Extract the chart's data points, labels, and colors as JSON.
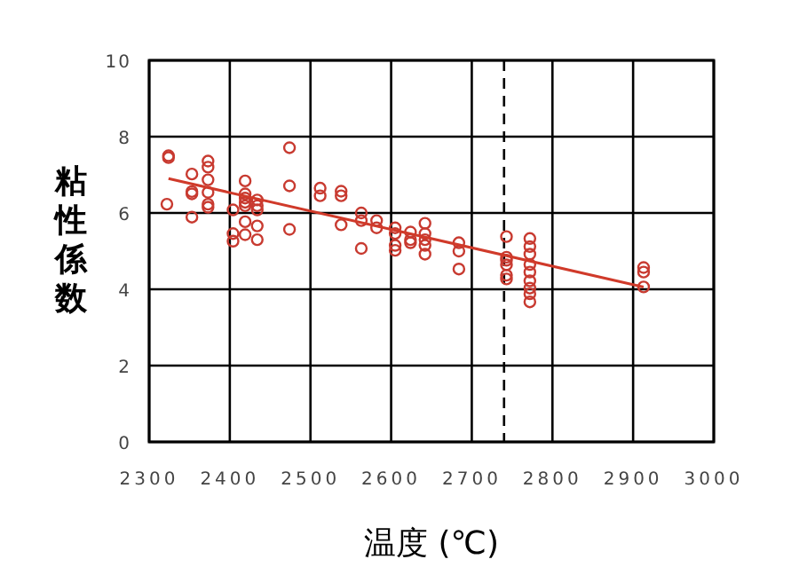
{
  "chart_data": {
    "type": "scatter",
    "xlabel": "温度 (℃)",
    "ylabel": "粘性係数",
    "xlim": [
      2300,
      3000
    ],
    "ylim": [
      0,
      10
    ],
    "xticks": [
      2300,
      2400,
      2500,
      2600,
      2700,
      2800,
      2900,
      3000
    ],
    "yticks": [
      0,
      2,
      4,
      6,
      8,
      10
    ],
    "grid": true,
    "marker": "circle",
    "ref_lines": [
      {
        "axis": "x",
        "value": 2740,
        "color": "#000000",
        "line_style": "dashed"
      }
    ],
    "series": [
      {
        "color": "#c83a30",
        "x": [
          2324,
          2324,
          2322,
          2353,
          2353,
          2353,
          2353,
          2373,
          2373,
          2373,
          2373,
          2373,
          2373,
          2419,
          2419,
          2419,
          2419,
          2419,
          2404,
          2404,
          2404,
          2419,
          2419,
          2434,
          2434,
          2434,
          2434,
          2434,
          2474,
          2474,
          2474,
          2512,
          2512,
          2538,
          2538,
          2538,
          2563,
          2563,
          2563,
          2582,
          2582,
          2605,
          2605,
          2605,
          2605,
          2624,
          2624,
          2624,
          2642,
          2642,
          2642,
          2642,
          2642,
          2684,
          2684,
          2684,
          2743,
          2743,
          2743,
          2743,
          2743,
          2743,
          2772,
          2772,
          2772,
          2772,
          2772,
          2772,
          2772,
          2772,
          2772,
          2913,
          2913,
          2913
        ],
        "values": [
          7.5,
          7.45,
          6.23,
          7.02,
          6.56,
          6.5,
          5.89,
          7.36,
          7.2,
          6.87,
          6.54,
          6.23,
          6.15,
          6.84,
          6.5,
          6.39,
          6.28,
          6.19,
          6.08,
          5.46,
          5.26,
          5.77,
          5.43,
          6.34,
          6.19,
          6.08,
          5.66,
          5.3,
          7.71,
          6.71,
          5.57,
          6.65,
          6.45,
          6.57,
          6.45,
          5.69,
          6.0,
          5.8,
          5.07,
          5.8,
          5.61,
          5.61,
          5.46,
          5.15,
          5.02,
          5.5,
          5.3,
          5.22,
          5.73,
          5.46,
          5.3,
          5.15,
          4.92,
          5.22,
          5.0,
          4.53,
          5.38,
          4.84,
          4.76,
          4.64,
          4.37,
          4.27,
          5.33,
          5.12,
          4.92,
          4.65,
          4.45,
          4.22,
          4.03,
          3.88,
          3.67,
          4.57,
          4.45,
          4.06
        ]
      },
      {
        "type": "line",
        "marker": "none",
        "color": "#d03a2a",
        "x": [
          2324,
          2913
        ],
        "values": [
          6.9,
          4.06
        ]
      }
    ]
  }
}
